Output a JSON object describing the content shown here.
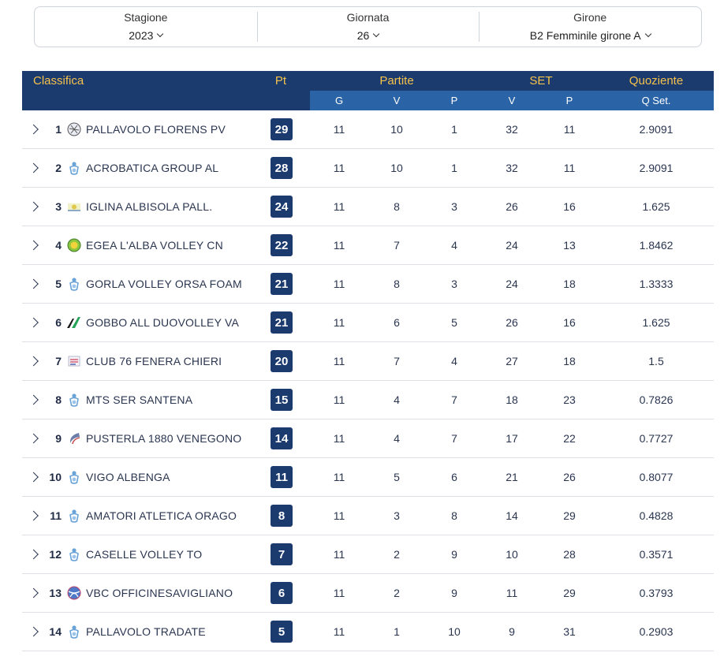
{
  "filters": [
    {
      "label": "Stagione",
      "value": "2023"
    },
    {
      "label": "Giornata",
      "value": "26"
    },
    {
      "label": "Girone",
      "value": "B2 Femminile girone A"
    }
  ],
  "table": {
    "headers": {
      "classifica": "Classifica",
      "pt": "Pt",
      "partite": "Partite",
      "set": "SET",
      "quoziente": "Quoziente"
    },
    "subheaders": [
      "G",
      "V",
      "P",
      "V",
      "P",
      "Q Set."
    ],
    "rows": [
      {
        "rank": "1",
        "logo": "florens-logo",
        "team": "PALLAVOLO FLORENS PV",
        "pt": "29",
        "g": "11",
        "pv": "10",
        "pp": "1",
        "sv": "32",
        "sp": "11",
        "q": "2.9091"
      },
      {
        "rank": "2",
        "logo": "fipav-logo",
        "team": "ACROBATICA GROUP AL",
        "pt": "28",
        "g": "11",
        "pv": "10",
        "pp": "1",
        "sv": "32",
        "sp": "11",
        "q": "2.9091"
      },
      {
        "rank": "3",
        "logo": "albisola-logo",
        "team": "IGLINA ALBISOLA PALL.",
        "pt": "24",
        "g": "11",
        "pv": "8",
        "pp": "3",
        "sv": "26",
        "sp": "16",
        "q": "1.625"
      },
      {
        "rank": "4",
        "logo": "alba-logo",
        "team": "EGEA L'ALBA VOLLEY CN",
        "pt": "22",
        "g": "11",
        "pv": "7",
        "pp": "4",
        "sv": "24",
        "sp": "13",
        "q": "1.8462"
      },
      {
        "rank": "5",
        "logo": "fipav-logo",
        "team": "GORLA VOLLEY ORSA FOAM",
        "pt": "21",
        "g": "11",
        "pv": "8",
        "pp": "3",
        "sv": "24",
        "sp": "18",
        "q": "1.3333"
      },
      {
        "rank": "6",
        "logo": "duovolley-logo",
        "team": "GOBBO ALL DUOVOLLEY VA",
        "pt": "21",
        "g": "11",
        "pv": "6",
        "pp": "5",
        "sv": "26",
        "sp": "16",
        "q": "1.625"
      },
      {
        "rank": "7",
        "logo": "club76-logo",
        "team": "CLUB 76 FENERA CHIERI",
        "pt": "20",
        "g": "11",
        "pv": "7",
        "pp": "4",
        "sv": "27",
        "sp": "18",
        "q": "1.5"
      },
      {
        "rank": "8",
        "logo": "fipav-logo",
        "team": "MTS SER SANTENA",
        "pt": "15",
        "g": "11",
        "pv": "4",
        "pp": "7",
        "sv": "18",
        "sp": "23",
        "q": "0.7826"
      },
      {
        "rank": "9",
        "logo": "pusterla-logo",
        "team": "PUSTERLA 1880 VENEGONO",
        "pt": "14",
        "g": "11",
        "pv": "4",
        "pp": "7",
        "sv": "17",
        "sp": "22",
        "q": "0.7727"
      },
      {
        "rank": "10",
        "logo": "fipav-logo",
        "team": "VIGO ALBENGA",
        "pt": "11",
        "g": "11",
        "pv": "5",
        "pp": "6",
        "sv": "21",
        "sp": "26",
        "q": "0.8077"
      },
      {
        "rank": "11",
        "logo": "fipav-logo",
        "team": "AMATORI ATLETICA ORAGO",
        "pt": "8",
        "g": "11",
        "pv": "3",
        "pp": "8",
        "sv": "14",
        "sp": "29",
        "q": "0.4828"
      },
      {
        "rank": "12",
        "logo": "fipav-logo",
        "team": "CASELLE VOLLEY TO",
        "pt": "7",
        "g": "11",
        "pv": "2",
        "pp": "9",
        "sv": "10",
        "sp": "28",
        "q": "0.3571"
      },
      {
        "rank": "13",
        "logo": "vbc-logo",
        "team": "VBC OFFICINESAVIGLIANO",
        "pt": "6",
        "g": "11",
        "pv": "2",
        "pp": "9",
        "sv": "11",
        "sp": "29",
        "q": "0.3793"
      },
      {
        "rank": "14",
        "logo": "fipav-logo",
        "team": "PALLAVOLO TRADATE",
        "pt": "5",
        "g": "11",
        "pv": "1",
        "pp": "10",
        "sv": "9",
        "sp": "31",
        "q": "0.2903"
      }
    ]
  },
  "colors": {
    "header_dark": "#1b3a6e",
    "header_sub": "#2b63a7",
    "header_text": "#f5c24b",
    "points_badge": "#1b3a6e"
  }
}
